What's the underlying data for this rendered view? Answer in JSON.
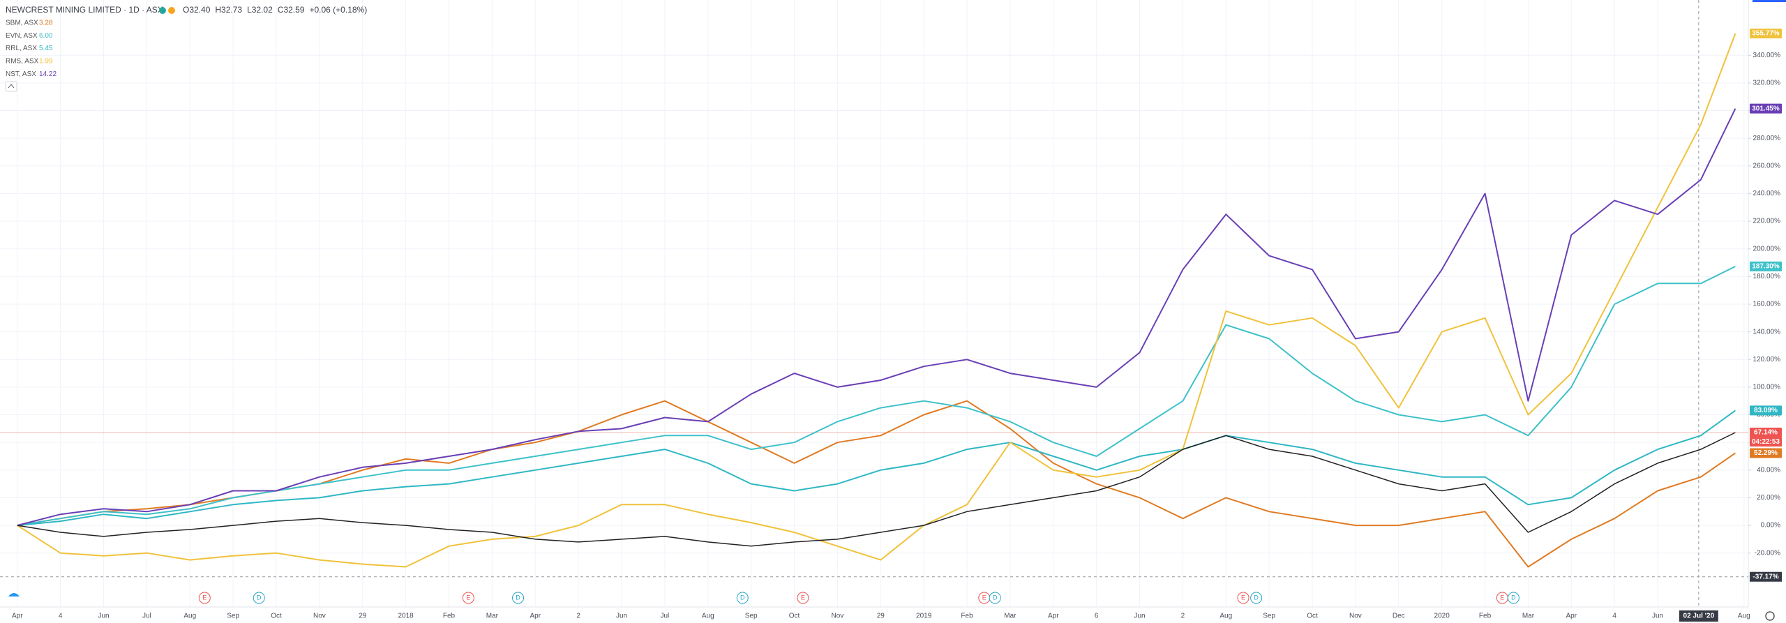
{
  "chart_data": {
    "type": "line",
    "title": "NEWCREST MINING LIMITED · 1D · ASX",
    "quote": [
      "O32.40",
      "H32.73",
      "L32.02",
      "C32.59",
      "+0.06 (+0.18%)"
    ],
    "x": [
      1,
      2,
      3,
      4,
      5,
      6,
      7,
      8,
      9,
      10,
      11,
      12,
      13,
      14,
      15,
      16,
      17,
      18,
      19,
      20,
      21,
      22,
      23,
      24,
      25,
      26,
      27,
      28,
      29,
      30,
      31,
      32,
      33,
      34,
      35,
      36,
      37,
      38,
      39,
      40,
      40.8
    ],
    "color": "#222222",
    "values": [
      0,
      -5,
      -8,
      -5,
      -3,
      0,
      3,
      5,
      2,
      0,
      -3,
      -5,
      -10,
      -12,
      -10,
      -8,
      -12,
      -15,
      -12,
      -10,
      -5,
      0,
      10,
      15,
      20,
      25,
      35,
      55,
      65,
      55,
      50,
      40,
      30,
      25,
      30,
      -5,
      10,
      30,
      45,
      55,
      67.14
    ],
    "last_label": "67.14%",
    "countdown": "04:22:53",
    "series": [
      {
        "name": "SBM, ASX",
        "last": "3.28",
        "color": "#e07a22",
        "last_label": "52.29%",
        "values": [
          0,
          5,
          10,
          12,
          15,
          20,
          25,
          30,
          40,
          48,
          45,
          55,
          60,
          68,
          80,
          90,
          75,
          60,
          45,
          60,
          65,
          80,
          90,
          70,
          45,
          30,
          20,
          5,
          20,
          10,
          5,
          0,
          0,
          5,
          10,
          -30,
          -10,
          5,
          25,
          35,
          52.29
        ]
      },
      {
        "name": "EVN, ASX",
        "last": "6.00",
        "color": "#3ec1c9",
        "last_label": "187.30%",
        "values": [
          0,
          5,
          10,
          8,
          12,
          20,
          25,
          30,
          35,
          40,
          40,
          45,
          50,
          55,
          60,
          65,
          65,
          55,
          60,
          75,
          85,
          90,
          85,
          75,
          60,
          50,
          70,
          90,
          145,
          135,
          110,
          90,
          80,
          75,
          80,
          65,
          100,
          160,
          175,
          175,
          187.3
        ]
      },
      {
        "name": "RRL, ASX",
        "last": "5.45",
        "color": "#2fb7c4",
        "last_label": "83.09%",
        "values": [
          0,
          3,
          8,
          5,
          10,
          15,
          18,
          20,
          25,
          28,
          30,
          35,
          40,
          45,
          50,
          55,
          45,
          30,
          25,
          30,
          40,
          45,
          55,
          60,
          50,
          40,
          50,
          55,
          65,
          60,
          55,
          45,
          40,
          35,
          35,
          15,
          20,
          40,
          55,
          65,
          83.09
        ]
      },
      {
        "name": "RMS, ASX",
        "last": "1.99",
        "color": "#f0c23b",
        "last_label": "355.77%",
        "values": [
          0,
          -20,
          -22,
          -20,
          -25,
          -22,
          -20,
          -25,
          -28,
          -30,
          -15,
          -10,
          -8,
          0,
          15,
          15,
          8,
          2,
          -5,
          -15,
          -25,
          0,
          15,
          60,
          40,
          35,
          40,
          55,
          155,
          145,
          150,
          130,
          85,
          140,
          150,
          80,
          110,
          170,
          230,
          290,
          355.77
        ]
      },
      {
        "name": "NST, ASX",
        "last": "14.22",
        "color": "#6a3fb5",
        "last_label": "301.45%",
        "values": [
          0,
          8,
          12,
          10,
          15,
          25,
          25,
          35,
          42,
          45,
          50,
          55,
          62,
          68,
          70,
          78,
          75,
          95,
          110,
          100,
          105,
          115,
          120,
          110,
          105,
          100,
          125,
          185,
          225,
          195,
          185,
          135,
          140,
          185,
          240,
          90,
          210,
          235,
          225,
          250,
          301.45
        ]
      }
    ],
    "xlim": [
      0.6,
      41.1
    ],
    "ylim": [
      -59,
      380
    ],
    "xticks": [
      {
        "value": 1,
        "label": "Apr"
      },
      {
        "value": 2,
        "label": "4"
      },
      {
        "value": 3,
        "label": "Jun"
      },
      {
        "value": 4,
        "label": "Jul"
      },
      {
        "value": 5,
        "label": "Aug"
      },
      {
        "value": 6,
        "label": "Sep"
      },
      {
        "value": 7,
        "label": "Oct"
      },
      {
        "value": 8,
        "label": "Nov"
      },
      {
        "value": 9,
        "label": "29"
      },
      {
        "value": 10,
        "label": "2018"
      },
      {
        "value": 11,
        "label": "Feb"
      },
      {
        "value": 12,
        "label": "Mar"
      },
      {
        "value": 13,
        "label": "Apr"
      },
      {
        "value": 14,
        "label": "2"
      },
      {
        "value": 15,
        "label": "Jun"
      },
      {
        "value": 16,
        "label": "Jul"
      },
      {
        "value": 17,
        "label": "Aug"
      },
      {
        "value": 18,
        "label": "Sep"
      },
      {
        "value": 19,
        "label": "Oct"
      },
      {
        "value": 20,
        "label": "Nov"
      },
      {
        "value": 21,
        "label": "29"
      },
      {
        "value": 22,
        "label": "2019"
      },
      {
        "value": 23,
        "label": "Feb"
      },
      {
        "value": 24,
        "label": "Mar"
      },
      {
        "value": 25,
        "label": "Apr"
      },
      {
        "value": 26,
        "label": "6"
      },
      {
        "value": 27,
        "label": "Jun"
      },
      {
        "value": 28,
        "label": "2"
      },
      {
        "value": 29,
        "label": "Aug"
      },
      {
        "value": 30,
        "label": "Sep"
      },
      {
        "value": 31,
        "label": "Oct"
      },
      {
        "value": 32,
        "label": "Nov"
      },
      {
        "value": 33,
        "label": "Dec"
      },
      {
        "value": 34,
        "label": "2020"
      },
      {
        "value": 35,
        "label": "Feb"
      },
      {
        "value": 36,
        "label": "Mar"
      },
      {
        "value": 37,
        "label": "Apr"
      },
      {
        "value": 38,
        "label": "4"
      },
      {
        "value": 39,
        "label": "Jun"
      },
      {
        "value": 41,
        "label": "Aug"
      }
    ],
    "yticks": [
      {
        "value": -20,
        "label": "-20.00%"
      },
      {
        "value": 0,
        "label": "0.00%"
      },
      {
        "value": 20,
        "label": "20.00%"
      },
      {
        "value": 40,
        "label": "40.00%"
      },
      {
        "value": 60,
        "label": "60.00%"
      },
      {
        "value": 80,
        "label": "80.00%"
      },
      {
        "value": 100,
        "label": "100.00%"
      },
      {
        "value": 120,
        "label": "120.00%"
      },
      {
        "value": 140,
        "label": "140.00%"
      },
      {
        "value": 160,
        "label": "160.00%"
      },
      {
        "value": 180,
        "label": "180.00%"
      },
      {
        "value": 200,
        "label": "200.00%"
      },
      {
        "value": 220,
        "label": "220.00%"
      },
      {
        "value": 240,
        "label": "240.00%"
      },
      {
        "value": 260,
        "label": "260.00%"
      },
      {
        "value": 280,
        "label": "280.00%"
      },
      {
        "value": 300,
        "label": "300.00%"
      },
      {
        "value": 320,
        "label": "320.00%"
      },
      {
        "value": 340,
        "label": "340.00%"
      }
    ],
    "grid": true,
    "crosshair": {
      "x": 39.95,
      "x_label": "02 Jul '20",
      "y": -37.17,
      "y_label": "-37.17%"
    },
    "events": [
      {
        "x": 5.34,
        "label": "E"
      },
      {
        "x": 6.6,
        "label": "D"
      },
      {
        "x": 11.45,
        "label": "E"
      },
      {
        "x": 12.6,
        "label": "D"
      },
      {
        "x": 17.8,
        "label": "D"
      },
      {
        "x": 19.2,
        "label": "E"
      },
      {
        "x": 23.4,
        "label": "E"
      },
      {
        "x": 23.65,
        "label": "D"
      },
      {
        "x": 29.4,
        "label": "E"
      },
      {
        "x": 29.7,
        "label": "D"
      },
      {
        "x": 35.4,
        "label": "E"
      },
      {
        "x": 35.66,
        "label": "D"
      }
    ]
  }
}
